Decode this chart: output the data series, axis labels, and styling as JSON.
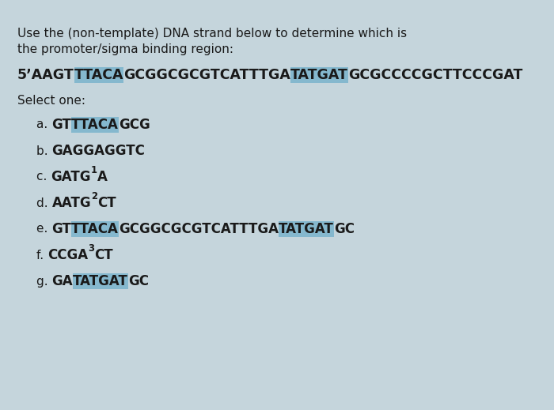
{
  "bg_color": "#c5d5dc",
  "text_color": "#1a1a1a",
  "highlight_color": "#7ab3cc",
  "question_line1": "Use the (non-template) DNA strand below to determine which is",
  "question_line2": "the promoter/sigma binding region:",
  "select_label": "Select one:",
  "dna_parts": [
    {
      "text": "5’AAGT",
      "highlight": false,
      "bold": true
    },
    {
      "text": "TTACA",
      "highlight": true,
      "bold": true
    },
    {
      "text": "GCGGCGCGTCATTTGA",
      "highlight": false,
      "bold": true
    },
    {
      "text": "TATGAT",
      "highlight": true,
      "bold": true
    },
    {
      "text": "GCGCCCCGCTTCCCGAT",
      "highlight": false,
      "bold": true
    }
  ],
  "options": [
    {
      "label": "a. ",
      "parts": [
        {
          "text": "GT",
          "highlight": false
        },
        {
          "text": "TTACA",
          "highlight": true
        },
        {
          "text": "GCG",
          "highlight": false
        }
      ]
    },
    {
      "label": "b. ",
      "parts": [
        {
          "text": "GAGGAGGTC",
          "highlight": false
        }
      ]
    },
    {
      "label": "c. ",
      "parts": [
        {
          "text": "GATG",
          "highlight": false
        },
        {
          "text": "1",
          "highlight": false,
          "super": true
        },
        {
          "text": "A",
          "highlight": false
        }
      ]
    },
    {
      "label": "d. ",
      "parts": [
        {
          "text": "AATG",
          "highlight": false
        },
        {
          "text": "2",
          "highlight": false,
          "super": true
        },
        {
          "text": "CT",
          "highlight": false
        }
      ]
    },
    {
      "label": "e. ",
      "parts": [
        {
          "text": "GT",
          "highlight": false
        },
        {
          "text": "TTACA",
          "highlight": true
        },
        {
          "text": "GCGGCGCGTCATTTGA",
          "highlight": false
        },
        {
          "text": "TATGAT",
          "highlight": true
        },
        {
          "text": "GC",
          "highlight": false
        }
      ]
    },
    {
      "label": "f. ",
      "parts": [
        {
          "text": "CCGA",
          "highlight": false
        },
        {
          "text": "3",
          "highlight": false,
          "super": true
        },
        {
          "text": "CT",
          "highlight": false
        }
      ]
    },
    {
      "label": "g. ",
      "parts": [
        {
          "text": "GA",
          "highlight": false
        },
        {
          "text": "TATGAT",
          "highlight": true
        },
        {
          "text": "GC",
          "highlight": false
        }
      ]
    }
  ]
}
